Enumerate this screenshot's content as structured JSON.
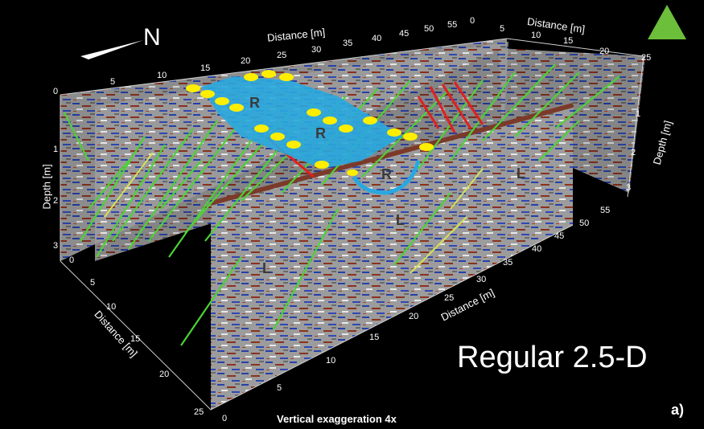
{
  "labels": {
    "distance_axis": "Distance [m]",
    "depth_axis": "Depth [m]",
    "north": "N",
    "title": "Regular 2.5-D",
    "panel": "a)",
    "vertical_exaggeration": "Vertical exaggeration 4x"
  },
  "annotations": [
    "R",
    "R",
    "R",
    "L",
    "L",
    "L"
  ],
  "ticks": {
    "top_distance": [
      "5",
      "10",
      "15",
      "20",
      "25",
      "30",
      "35",
      "40",
      "45",
      "50",
      "55"
    ],
    "top_distance_upper_right": [
      "0",
      "5"
    ],
    "right_distance": [
      "10",
      "15",
      "20",
      "25"
    ],
    "left_depth": [
      "0",
      "1",
      "2",
      "3"
    ],
    "right_depth": [
      "1",
      "2",
      "3"
    ],
    "left_bottom_distance": [
      "0",
      "5",
      "10",
      "15",
      "20",
      "25"
    ],
    "front_distance": [
      "0",
      "5",
      "10",
      "15",
      "20",
      "25",
      "30",
      "35",
      "40",
      "45",
      "50",
      "55"
    ]
  },
  "colors": {
    "background": "#000000",
    "trend_icon": "#6cbf3a",
    "fracture_lines": "#4cd137",
    "yellow_lines": "#d4e157",
    "interpreted_surface": "#29a8e0",
    "markers": "#ffee00",
    "red_lines": "#e02020"
  }
}
